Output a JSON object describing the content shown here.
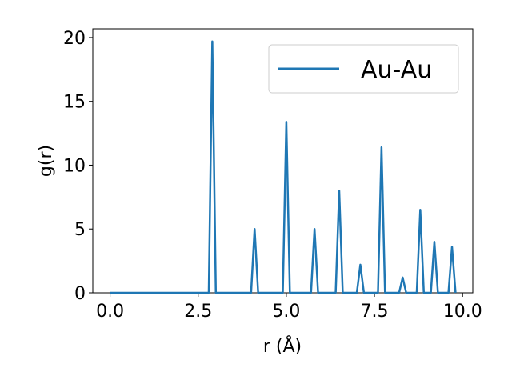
{
  "chart_data": {
    "type": "line",
    "xlabel": "r (Å)",
    "ylabel": "g(r)",
    "x": [
      0,
      0.1,
      0.2,
      0.3,
      0.4,
      0.5,
      0.6,
      0.7,
      0.8,
      0.9,
      1,
      1.1,
      1.2,
      1.3,
      1.4,
      1.5,
      1.6,
      1.7,
      1.8,
      1.9,
      2,
      2.1,
      2.2,
      2.3,
      2.4,
      2.5,
      2.6,
      2.7,
      2.8,
      2.9,
      3,
      3.1,
      3.2,
      3.3,
      3.4,
      3.5,
      3.6,
      3.7,
      3.8,
      3.9,
      4,
      4.1,
      4.2,
      4.3,
      4.4,
      4.5,
      4.6,
      4.7,
      4.8,
      4.9,
      5,
      5.1,
      5.2,
      5.3,
      5.4,
      5.5,
      5.6,
      5.7,
      5.8,
      5.9,
      6,
      6.1,
      6.2,
      6.3,
      6.4,
      6.5,
      6.6,
      6.7,
      6.8,
      6.9,
      7,
      7.1,
      7.2,
      7.3,
      7.4,
      7.5,
      7.6,
      7.7,
      7.8,
      7.9,
      8,
      8.1,
      8.2,
      8.3,
      8.4,
      8.5,
      8.6,
      8.7,
      8.8,
      8.9,
      9,
      9.1,
      9.2,
      9.3,
      9.4,
      9.5,
      9.6,
      9.7,
      9.8
    ],
    "series": [
      {
        "name": "Au-Au",
        "color": "#1f77b4",
        "values": [
          0,
          0,
          0,
          0,
          0,
          0,
          0,
          0,
          0,
          0,
          0,
          0,
          0,
          0,
          0,
          0,
          0,
          0,
          0,
          0,
          0,
          0,
          0,
          0,
          0,
          0,
          0,
          0,
          0,
          19.7,
          0,
          0,
          0,
          0,
          0,
          0,
          0,
          0,
          0,
          0,
          0,
          5.0,
          0,
          0,
          0,
          0,
          0,
          0,
          0,
          0,
          13.4,
          0,
          0,
          0,
          0,
          0,
          0,
          0,
          5.0,
          0,
          0,
          0,
          0,
          0,
          0,
          8.0,
          0,
          0,
          0,
          0,
          0,
          2.2,
          0,
          0,
          0,
          0,
          0,
          11.4,
          0,
          0,
          0,
          0,
          0,
          1.2,
          0,
          0,
          0,
          0,
          6.5,
          0,
          0,
          0,
          4.0,
          0,
          0,
          0,
          0,
          3.6,
          0
        ]
      }
    ],
    "xlim": [
      -0.49,
      10.29
    ],
    "ylim": [
      0,
      20.685
    ],
    "xticks": [
      {
        "value": 0,
        "label": "0.0"
      },
      2.5,
      {
        "value": 5,
        "label": "5.0"
      },
      7.5,
      {
        "value": 10,
        "label": "10.0"
      }
    ],
    "yticks": [
      0,
      5,
      10,
      15,
      20
    ],
    "legend": "upper right"
  }
}
